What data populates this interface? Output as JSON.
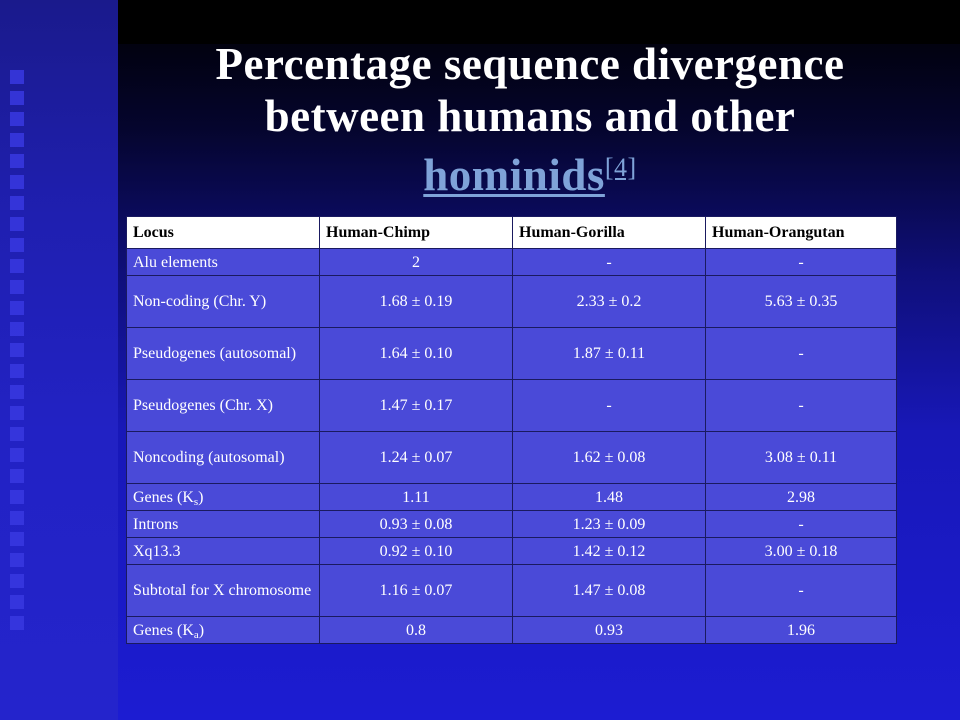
{
  "title": {
    "line1": "Percentage sequence divergence",
    "line2": "between humans and other",
    "link": "hominids",
    "ref": "[4]"
  },
  "table": {
    "headers": [
      "Locus",
      "Human-Chimp",
      "Human-Gorilla",
      "Human-Orangutan"
    ],
    "rows": [
      {
        "locus": "Alu elements",
        "chimp": "2",
        "gorilla": "-",
        "orangutan": "-"
      },
      {
        "locus": "Non-coding (Chr. Y)",
        "chimp": "1.68 ± 0.19",
        "gorilla": "2.33 ± 0.2",
        "orangutan": "5.63 ± 0.35"
      },
      {
        "locus": "Pseudogenes (autosomal)",
        "chimp": "1.64 ± 0.10",
        "gorilla": "1.87 ± 0.11",
        "orangutan": "-"
      },
      {
        "locus": "Pseudogenes (Chr. X)",
        "chimp": "1.47 ± 0.17",
        "gorilla": "-",
        "orangutan": "-"
      },
      {
        "locus": "Noncoding (autosomal)",
        "chimp": "1.24 ± 0.07",
        "gorilla": "1.62 ± 0.08",
        "orangutan": "3.08 ± 0.11"
      },
      {
        "locus": "Genes (K",
        "locus_sub": "s",
        "locus_end": ")",
        "chimp": "1.11",
        "gorilla": "1.48",
        "orangutan": "2.98"
      },
      {
        "locus": "Introns",
        "chimp": "0.93 ± 0.08",
        "gorilla": "1.23 ± 0.09",
        "orangutan": "-"
      },
      {
        "locus": "Xq13.3",
        "chimp": "0.92 ± 0.10",
        "gorilla": "1.42 ± 0.12",
        "orangutan": "3.00 ± 0.18"
      },
      {
        "locus": "Subtotal for X chromosome",
        "chimp": "1.16 ± 0.07",
        "gorilla": "1.47 ± 0.08",
        "orangutan": "-"
      },
      {
        "locus": "Genes (K",
        "locus_sub": "a",
        "locus_end": ")",
        "chimp": "0.8",
        "gorilla": "0.93",
        "orangutan": "1.96"
      }
    ]
  },
  "colors": {
    "title_text": "#ffffff",
    "link": "#7fa3d8",
    "cell_bg": "#4a4ad8",
    "header_bg": "#ffffff"
  }
}
